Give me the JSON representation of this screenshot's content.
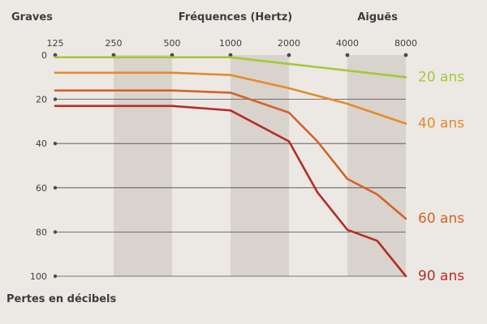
{
  "chart_data": {
    "type": "line",
    "header_left": "Graves",
    "xlabel": "Fréquences (Hertz)",
    "header_right": "Aiguës",
    "ylabel": "Pertes en décibels",
    "x_ticks": [
      "125",
      "250",
      "500",
      "1000",
      "2000",
      "4000",
      "8000"
    ],
    "y_ticks": [
      "0",
      "20",
      "40",
      "60",
      "80",
      "100"
    ],
    "x_scale": "log",
    "ylim": [
      0,
      100
    ],
    "y_inverted": true,
    "grid": "horizontal",
    "shaded_bands": [
      [
        250,
        500
      ],
      [
        1000,
        2000
      ],
      [
        4000,
        8000
      ]
    ],
    "series": [
      {
        "name": "20 ans",
        "color": "#a6c83a",
        "points": [
          [
            125,
            1
          ],
          [
            1000,
            1
          ],
          [
            2000,
            4
          ],
          [
            4000,
            7
          ],
          [
            8000,
            10
          ]
        ]
      },
      {
        "name": "40 ans",
        "color": "#e58a2b",
        "points": [
          [
            125,
            8
          ],
          [
            500,
            8
          ],
          [
            1000,
            9
          ],
          [
            2000,
            15
          ],
          [
            4000,
            22
          ],
          [
            8000,
            31
          ]
        ]
      },
      {
        "name": "60 ans",
        "color": "#d4622a",
        "points": [
          [
            125,
            16
          ],
          [
            500,
            16
          ],
          [
            1000,
            17
          ],
          [
            2000,
            26
          ],
          [
            2800,
            39
          ],
          [
            4000,
            56
          ],
          [
            5700,
            63
          ],
          [
            8000,
            74
          ]
        ]
      },
      {
        "name": "90 ans",
        "color": "#b82b28",
        "points": [
          [
            125,
            23
          ],
          [
            500,
            23
          ],
          [
            1000,
            25
          ],
          [
            2000,
            39
          ],
          [
            2800,
            62
          ],
          [
            4000,
            79
          ],
          [
            5700,
            84
          ],
          [
            8000,
            100
          ]
        ]
      }
    ]
  }
}
